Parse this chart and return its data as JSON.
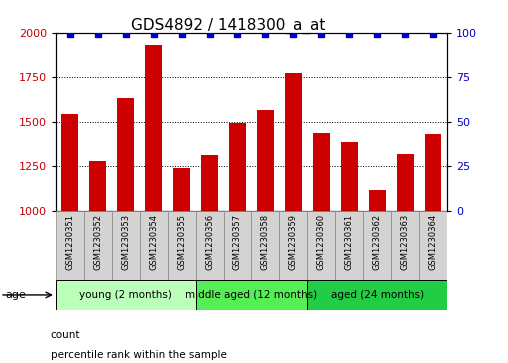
{
  "title": "GDS4892 / 1418300_a_at",
  "samples": [
    "GSM1230351",
    "GSM1230352",
    "GSM1230353",
    "GSM1230354",
    "GSM1230355",
    "GSM1230356",
    "GSM1230357",
    "GSM1230358",
    "GSM1230359",
    "GSM1230360",
    "GSM1230361",
    "GSM1230362",
    "GSM1230363",
    "GSM1230364"
  ],
  "counts": [
    1545,
    1280,
    1635,
    1930,
    1240,
    1315,
    1490,
    1565,
    1775,
    1435,
    1385,
    1115,
    1320,
    1430
  ],
  "percentiles": [
    99,
    99,
    99,
    99,
    99,
    99,
    99,
    99,
    99,
    99,
    99,
    99,
    99,
    99
  ],
  "ylim_left": [
    1000,
    2000
  ],
  "ylim_right": [
    0,
    100
  ],
  "yticks_left": [
    1000,
    1250,
    1500,
    1750,
    2000
  ],
  "yticks_right": [
    0,
    25,
    50,
    75,
    100
  ],
  "bar_color": "#cc0000",
  "dot_color": "#0000cc",
  "groups": [
    {
      "label": "young (2 months)",
      "start": 0,
      "end": 5,
      "color": "#bbffbb"
    },
    {
      "label": "middle aged (12 months)",
      "start": 5,
      "end": 9,
      "color": "#55ee55"
    },
    {
      "label": "aged (24 months)",
      "start": 9,
      "end": 14,
      "color": "#22cc44"
    }
  ],
  "legend_count_label": "count",
  "legend_pct_label": "percentile rank within the sample",
  "age_label": "age",
  "sample_box_color": "#d3d3d3",
  "background_color": "#ffffff",
  "title_fontsize": 11,
  "tick_fontsize": 8,
  "sample_fontsize": 6,
  "group_fontsize": 7.5,
  "legend_fontsize": 7.5
}
